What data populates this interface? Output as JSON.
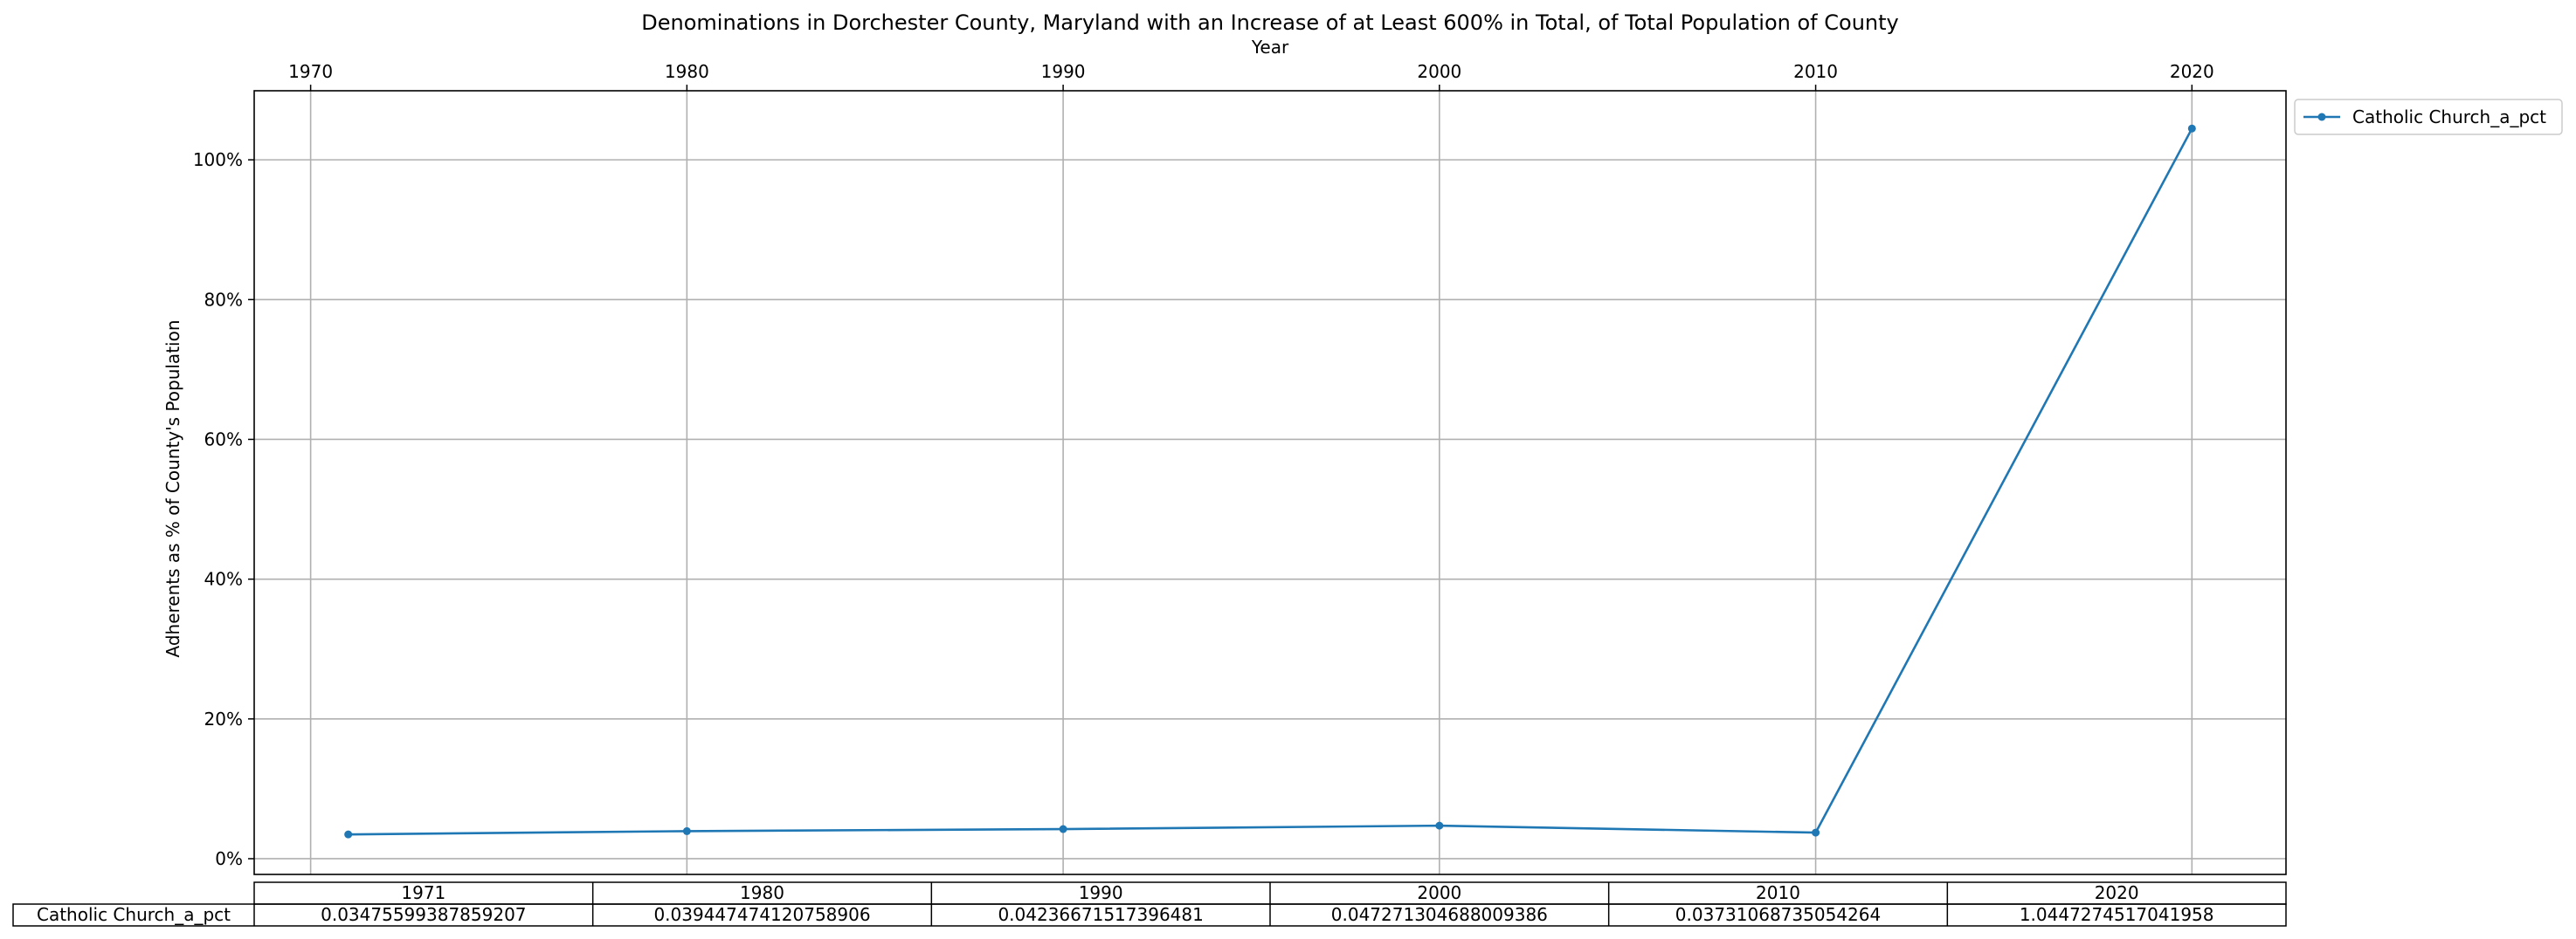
{
  "chart_data": {
    "type": "line",
    "title": "Denominations in Dorchester County, Maryland with an Increase of at Least 600% in Total, of Total Population of County",
    "xlabel": "Year",
    "ylabel": "Adherents as % of County's Population",
    "x": [
      1971,
      1980,
      1990,
      2000,
      2010,
      2020
    ],
    "x_ticks": [
      "1970",
      "1980",
      "1990",
      "2000",
      "2010",
      "2020"
    ],
    "y_ticks": [
      "0%",
      "20%",
      "40%",
      "60%",
      "80%",
      "100%"
    ],
    "xlim": [
      1968.5,
      2022.5
    ],
    "ylim": [
      -0.0225,
      1.0988
    ],
    "grid": true,
    "legend_position": "outside top-right",
    "series": [
      {
        "name": "Catholic Church_a_pct",
        "color": "#1f77b4",
        "values": [
          0.03475599387859207,
          0.039447474120758906,
          0.04236671517396481,
          0.047271304688009386,
          0.03731068735054264,
          1.0447274517041958
        ]
      }
    ],
    "table": {
      "columns": [
        "1971",
        "1980",
        "1990",
        "2000",
        "2010",
        "2020"
      ],
      "row_label": "Catholic Church_a_pct",
      "cells": [
        "0.03475599387859207",
        "0.039447474120758906",
        "0.04236671517396481",
        "0.047271304688009386",
        "0.03731068735054264",
        "1.0447274517041958"
      ]
    }
  }
}
